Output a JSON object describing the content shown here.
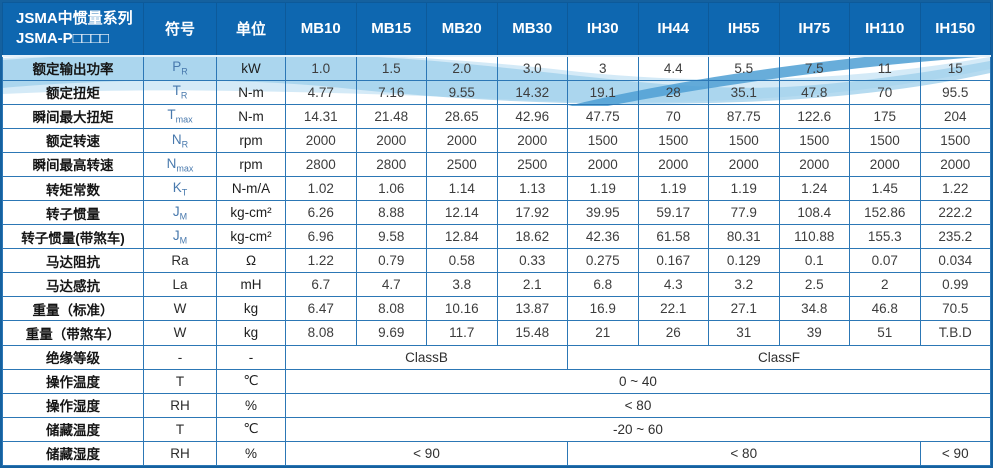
{
  "colors": {
    "header_bg": "#0e67b0",
    "grid_border": "#2c77b5",
    "outer_border": "#15619f",
    "symbol_blue": "#4879ad",
    "swoosh_light": "#cfe8f6",
    "swoosh_mid": "#9ecfeb",
    "swoosh_dark": "#4d9fd4"
  },
  "table": {
    "title_line1": "JSMA中惯量系列",
    "title_line2": "JSMA-P□□□□",
    "col_symbol": "符号",
    "col_unit": "单位",
    "models": [
      "MB10",
      "MB15",
      "MB20",
      "MB30",
      "IH30",
      "IH44",
      "IH55",
      "IH75",
      "IH110",
      "IH150"
    ],
    "rows": [
      {
        "label": "额定输出功率",
        "sym": "P",
        "sub": "R",
        "unit": "kW",
        "values": [
          "1.0",
          "1.5",
          "2.0",
          "3.0",
          "3",
          "4.4",
          "5.5",
          "7.5",
          "11",
          "15"
        ]
      },
      {
        "label": "额定扭矩",
        "sym": "T",
        "sub": "R",
        "unit": "N-m",
        "values": [
          "4.77",
          "7.16",
          "9.55",
          "14.32",
          "19.1",
          "28",
          "35.1",
          "47.8",
          "70",
          "95.5"
        ]
      },
      {
        "label": "瞬间最大扭矩",
        "sym": "T",
        "sub": "max",
        "unit": "N-m",
        "values": [
          "14.31",
          "21.48",
          "28.65",
          "42.96",
          "47.75",
          "70",
          "87.75",
          "122.6",
          "175",
          "204"
        ]
      },
      {
        "label": "额定转速",
        "sym": "N",
        "sub": "R",
        "unit": "rpm",
        "values": [
          "2000",
          "2000",
          "2000",
          "2000",
          "1500",
          "1500",
          "1500",
          "1500",
          "1500",
          "1500"
        ]
      },
      {
        "label": "瞬间最高转速",
        "sym": "N",
        "sub": "max",
        "unit": "rpm",
        "values": [
          "2800",
          "2800",
          "2500",
          "2500",
          "2000",
          "2000",
          "2000",
          "2000",
          "2000",
          "2000"
        ]
      },
      {
        "label": "转矩常数",
        "sym": "K",
        "sub": "T",
        "unit": "N-m/A",
        "values": [
          "1.02",
          "1.06",
          "1.14",
          "1.13",
          "1.19",
          "1.19",
          "1.19",
          "1.24",
          "1.45",
          "1.22"
        ]
      },
      {
        "label": "转子惯量",
        "sym": "J",
        "sub": "M",
        "unit": "kg-cm²",
        "values": [
          "6.26",
          "8.88",
          "12.14",
          "17.92",
          "39.95",
          "59.17",
          "77.9",
          "108.4",
          "152.86",
          "222.2"
        ]
      },
      {
        "label": "转子惯量(带煞车)",
        "sym": "J",
        "sub": "M",
        "unit": "kg-cm²",
        "values": [
          "6.96",
          "9.58",
          "12.84",
          "18.62",
          "42.36",
          "61.58",
          "80.31",
          "110.88",
          "155.3",
          "235.2"
        ]
      },
      {
        "label": "马达阻抗",
        "sym": "Ra",
        "sub": "",
        "unit": "Ω",
        "values": [
          "1.22",
          "0.79",
          "0.58",
          "0.33",
          "0.275",
          "0.167",
          "0.129",
          "0.1",
          "0.07",
          "0.034"
        ]
      },
      {
        "label": "马达感抗",
        "sym": "La",
        "sub": "",
        "unit": "mH",
        "values": [
          "6.7",
          "4.7",
          "3.8",
          "2.1",
          "6.8",
          "4.3",
          "3.2",
          "2.5",
          "2",
          "0.99"
        ]
      },
      {
        "label": "重量（标准）",
        "sym": "W",
        "sub": "",
        "unit": "kg",
        "values": [
          "6.47",
          "8.08",
          "10.16",
          "13.87",
          "16.9",
          "22.1",
          "27.1",
          "34.8",
          "46.8",
          "70.5"
        ]
      },
      {
        "label": "重量（带煞车）",
        "sym": "W",
        "sub": "",
        "unit": "kg",
        "values": [
          "8.08",
          "9.69",
          "11.7",
          "15.48",
          "21",
          "26",
          "31",
          "39",
          "51",
          "T.B.D"
        ]
      },
      {
        "label": "绝缘等级",
        "sym": "-",
        "sub": "",
        "unit": "-",
        "spans": [
          {
            "text": "ClassB",
            "cols": 4
          },
          {
            "text": "ClassF",
            "cols": 6
          }
        ]
      },
      {
        "label": "操作温度",
        "sym": "T",
        "sub": "",
        "unit": "℃",
        "spans": [
          {
            "text": "0 ~ 40",
            "cols": 10
          }
        ]
      },
      {
        "label": "操作湿度",
        "sym": "RH",
        "sub": "",
        "unit": "%",
        "spans": [
          {
            "text": "< 80",
            "cols": 10
          }
        ]
      },
      {
        "label": "储藏温度",
        "sym": "T",
        "sub": "",
        "unit": "℃",
        "spans": [
          {
            "text": "-20 ~ 60",
            "cols": 10
          }
        ]
      },
      {
        "label": "储藏湿度",
        "sym": "RH",
        "sub": "",
        "unit": "%",
        "spans": [
          {
            "text": "< 90",
            "cols": 4
          },
          {
            "text": "< 80",
            "cols": 5
          },
          {
            "text": "< 90",
            "cols": 1
          }
        ]
      }
    ]
  }
}
